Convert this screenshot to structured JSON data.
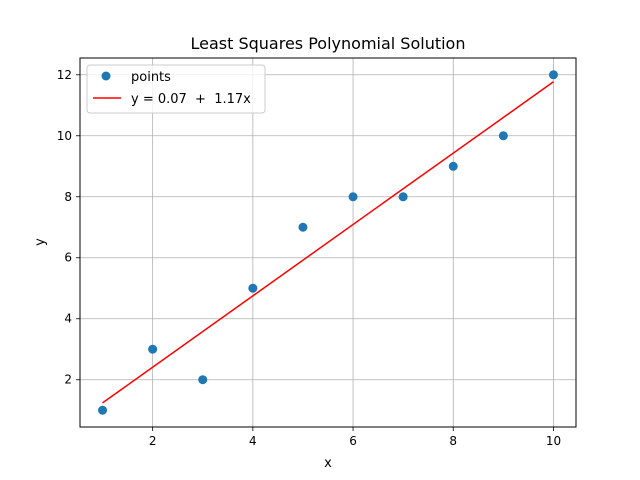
{
  "chart_data": {
    "type": "scatter",
    "title": "Least Squares Polynomial Solution",
    "xlabel": "x",
    "ylabel": "y",
    "xlim": [
      0.55,
      10.45
    ],
    "ylim": [
      0.45,
      12.55
    ],
    "xticks": [
      2,
      4,
      6,
      8,
      10
    ],
    "yticks": [
      2,
      4,
      6,
      8,
      10,
      12
    ],
    "grid": true,
    "legend_position": "top-left",
    "series": [
      {
        "name": "points",
        "kind": "scatter",
        "color": "#1f77b4",
        "x": [
          1,
          2,
          3,
          4,
          5,
          6,
          7,
          8,
          9,
          10
        ],
        "y": [
          1,
          3,
          2,
          5,
          7,
          8,
          8,
          9,
          10,
          12
        ]
      },
      {
        "name": "y = 0.07  +  1.17x",
        "kind": "line",
        "color": "#ff0000",
        "intercept": 0.07,
        "slope": 1.17,
        "x": [
          1,
          10
        ]
      }
    ]
  }
}
